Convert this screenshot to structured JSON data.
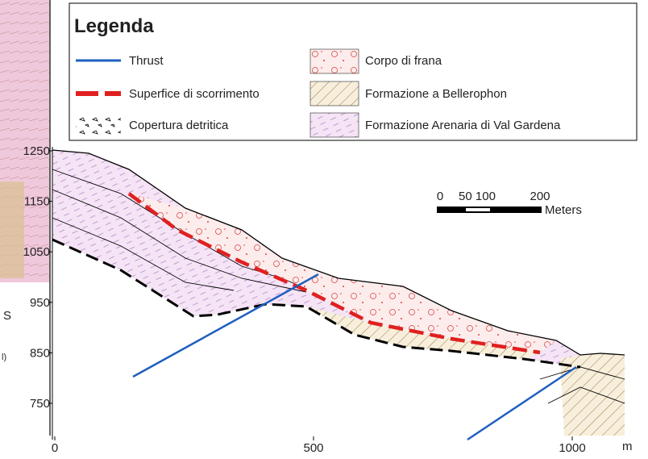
{
  "legend": {
    "title": "Legenda",
    "items": [
      {
        "label": "Thrust"
      },
      {
        "label": "Superfice di scorrimento"
      },
      {
        "label": "Copertura detritica"
      },
      {
        "label": "Corpo di frana"
      },
      {
        "label": "Formazione a Bellerophon"
      },
      {
        "label": "Formazione Arenaria di Val Gardena"
      }
    ]
  },
  "axes": {
    "yticks": [
      1250,
      1150,
      1050,
      950,
      850,
      750
    ],
    "xticks": [
      0,
      500,
      1000
    ],
    "x_unit": "m"
  },
  "scale_bar": {
    "ticks": [
      "0",
      "50 100",
      "200"
    ],
    "unit": "Meters"
  },
  "map_fragment": {
    "labels": [
      "S",
      "l)"
    ]
  }
}
